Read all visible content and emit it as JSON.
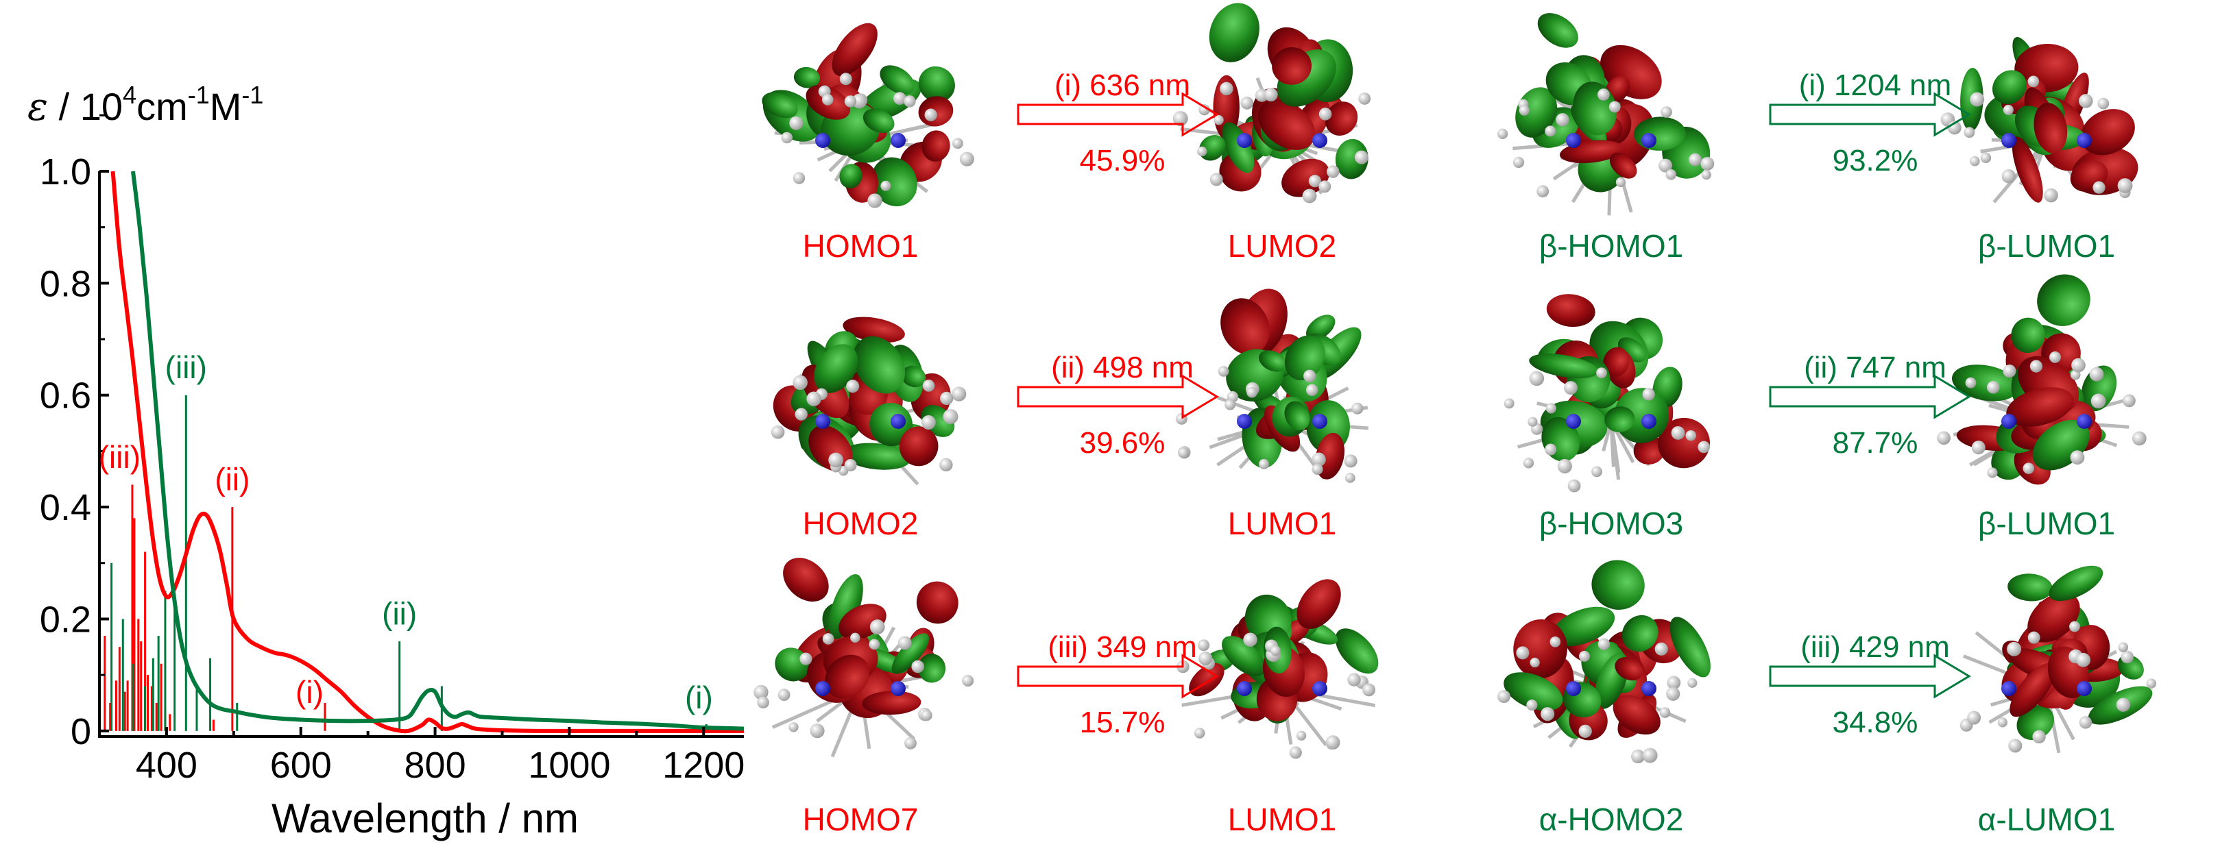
{
  "colors": {
    "red": "#ff0000",
    "green": "#007a3d",
    "orbital_red": "#8b0000",
    "orbital_green": "#1e8c1e"
  },
  "chart_data": {
    "type": "line",
    "ylabel_symbol": "ε",
    "ylabel_rest": " / 10",
    "ylabel_exp1": "4",
    "ylabel_unit1": "cm",
    "ylabel_exp2": "-1",
    "ylabel_unit2": "M",
    "ylabel_exp3": "-1",
    "xlabel": "Wavelength / nm",
    "xlim": [
      300,
      1260
    ],
    "ylim": [
      -0.01,
      1.0
    ],
    "xticks": [
      "400",
      "600",
      "800",
      "1000",
      "1200"
    ],
    "xtick_values": [
      400,
      600,
      800,
      1000,
      1200
    ],
    "yticks": [
      "0",
      "0.2",
      "0.4",
      "0.6",
      "0.8",
      "1.0"
    ],
    "ytick_values": [
      0,
      0.2,
      0.4,
      0.6,
      0.8,
      1.0
    ],
    "series": [
      {
        "color": "#ff0000",
        "x": [
          320,
          330,
          340,
          350,
          360,
          370,
          380,
          390,
          400,
          410,
          420,
          430,
          440,
          450,
          460,
          470,
          480,
          490,
          500,
          520,
          540,
          560,
          580,
          600,
          620,
          640,
          660,
          680,
          700,
          720,
          740,
          760,
          780,
          790,
          800,
          810,
          820,
          830,
          840,
          850,
          860,
          880,
          900,
          950,
          1000,
          1100,
          1200,
          1260
        ],
        "y": [
          1.0,
          0.86,
          0.76,
          0.66,
          0.55,
          0.44,
          0.34,
          0.27,
          0.24,
          0.25,
          0.28,
          0.32,
          0.36,
          0.385,
          0.385,
          0.36,
          0.32,
          0.26,
          0.2,
          0.165,
          0.15,
          0.14,
          0.135,
          0.125,
          0.11,
          0.09,
          0.07,
          0.045,
          0.025,
          0.01,
          0.002,
          0.0,
          0.01,
          0.02,
          0.015,
          0.005,
          0.004,
          0.008,
          0.012,
          0.008,
          0.004,
          0.002,
          0.001,
          0.0,
          0.0,
          0.0,
          0.0,
          0.0
        ]
      },
      {
        "color": "#007a3d",
        "x": [
          350,
          360,
          370,
          380,
          390,
          400,
          410,
          420,
          430,
          440,
          450,
          460,
          470,
          480,
          490,
          500,
          520,
          540,
          560,
          600,
          650,
          700,
          740,
          760,
          770,
          780,
          790,
          800,
          810,
          820,
          830,
          840,
          850,
          860,
          870,
          900,
          950,
          1000,
          1050,
          1100,
          1150,
          1200,
          1260
        ],
        "y": [
          1.0,
          0.9,
          0.78,
          0.64,
          0.5,
          0.36,
          0.25,
          0.17,
          0.12,
          0.09,
          0.07,
          0.055,
          0.045,
          0.04,
          0.037,
          0.035,
          0.03,
          0.026,
          0.023,
          0.02,
          0.018,
          0.018,
          0.02,
          0.025,
          0.04,
          0.06,
          0.072,
          0.07,
          0.045,
          0.03,
          0.025,
          0.03,
          0.033,
          0.028,
          0.025,
          0.023,
          0.02,
          0.018,
          0.015,
          0.013,
          0.01,
          0.006,
          0.004
        ]
      }
    ],
    "sticks_red": [
      {
        "x": 308,
        "y": 0.17
      },
      {
        "x": 316,
        "y": 0.05
      },
      {
        "x": 325,
        "y": 0.09
      },
      {
        "x": 330,
        "y": 0.15
      },
      {
        "x": 338,
        "y": 0.07
      },
      {
        "x": 342,
        "y": 0.09
      },
      {
        "x": 349,
        "y": 0.44
      },
      {
        "x": 352,
        "y": 0.38
      },
      {
        "x": 358,
        "y": 0.2
      },
      {
        "x": 362,
        "y": 0.16
      },
      {
        "x": 368,
        "y": 0.32
      },
      {
        "x": 372,
        "y": 0.1
      },
      {
        "x": 378,
        "y": 0.08
      },
      {
        "x": 385,
        "y": 0.05
      },
      {
        "x": 392,
        "y": 0.12
      },
      {
        "x": 398,
        "y": 0.04
      },
      {
        "x": 405,
        "y": 0.03
      },
      {
        "x": 470,
        "y": 0.02
      },
      {
        "x": 498,
        "y": 0.4
      },
      {
        "x": 636,
        "y": 0.05
      }
    ],
    "sticks_green": [
      {
        "x": 318,
        "y": 0.3
      },
      {
        "x": 335,
        "y": 0.2
      },
      {
        "x": 350,
        "y": 0.12
      },
      {
        "x": 368,
        "y": 0.08
      },
      {
        "x": 380,
        "y": 0.13
      },
      {
        "x": 388,
        "y": 0.17
      },
      {
        "x": 398,
        "y": 0.25
      },
      {
        "x": 412,
        "y": 0.23
      },
      {
        "x": 429,
        "y": 0.6
      },
      {
        "x": 445,
        "y": 0.08
      },
      {
        "x": 465,
        "y": 0.13
      },
      {
        "x": 505,
        "y": 0.05
      },
      {
        "x": 747,
        "y": 0.16
      },
      {
        "x": 810,
        "y": 0.08
      },
      {
        "x": 1204,
        "y": 0.012
      }
    ],
    "annotations": [
      {
        "text": "(iii)",
        "color": "red",
        "x": 330,
        "y": 0.47
      },
      {
        "text": "(ii)",
        "color": "red",
        "x": 498,
        "y": 0.43
      },
      {
        "text": "(i)",
        "color": "red",
        "x": 613,
        "y": 0.05
      },
      {
        "text": "(iii)",
        "color": "green",
        "x": 429,
        "y": 0.63
      },
      {
        "text": "(ii)",
        "color": "green",
        "x": 747,
        "y": 0.19
      },
      {
        "text": "(i)",
        "color": "green",
        "x": 1193,
        "y": 0.04
      }
    ]
  },
  "transitions": [
    {
      "from": "HOMO1",
      "to": "LUMO2",
      "line1": "(i) 636 nm",
      "line2": "45.9%",
      "color": "red"
    },
    {
      "from": "β-HOMO1",
      "to": "β-LUMO1",
      "line1": "(i) 1204 nm",
      "line2": "93.2%",
      "color": "green"
    },
    {
      "from": "HOMO2",
      "to": "LUMO1",
      "line1": "(ii) 498 nm",
      "line2": "39.6%",
      "color": "red"
    },
    {
      "from": "β-HOMO3",
      "to": "β-LUMO1",
      "line1": "(ii) 747 nm",
      "line2": "87.7%",
      "color": "green"
    },
    {
      "from": "HOMO7",
      "to": "LUMO1",
      "line1": "(iii) 349 nm",
      "line2": "15.7%",
      "color": "red"
    },
    {
      "from": "α-HOMO2",
      "to": "α-LUMO1",
      "line1": "(iii) 429 nm",
      "line2": "34.8%",
      "color": "green"
    }
  ]
}
